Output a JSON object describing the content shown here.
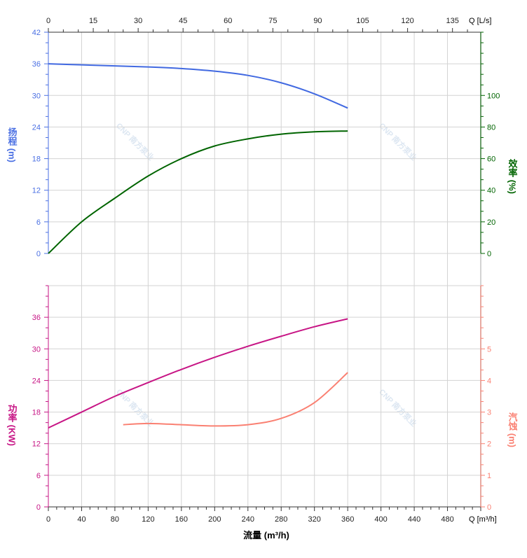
{
  "chart_data": {
    "type": "line",
    "x": {
      "label": "流量 (m³/h)",
      "unit_label": "Q [m³/h]",
      "range": [
        0,
        520
      ],
      "ticks": [
        0,
        40,
        80,
        120,
        160,
        200,
        240,
        280,
        320,
        360,
        400,
        440,
        480
      ]
    },
    "x2": {
      "unit_label": "Q [L/s]",
      "range": [
        0,
        144.44
      ],
      "ticks": [
        0,
        15,
        30,
        45,
        60,
        75,
        90,
        105,
        120,
        135
      ]
    },
    "panels": [
      {
        "name": "upper",
        "axes": [
          {
            "id": "head",
            "label": "扬程 (m)",
            "side": "left",
            "range": [
              0,
              42
            ],
            "ticks": [
              0,
              6,
              12,
              18,
              24,
              30,
              36,
              42
            ],
            "color": "#4a6fe3"
          },
          {
            "id": "eff",
            "label": "效率 (%)",
            "side": "right",
            "range": [
              0,
              140
            ],
            "ticks": [
              0,
              20,
              40,
              60,
              80,
              100
            ],
            "color": "#006400"
          }
        ],
        "series": [
          {
            "id": "head",
            "axis": "head",
            "color": "#4169e1",
            "x": [
              0,
              40,
              80,
              120,
              160,
              200,
              240,
              280,
              320,
              360
            ],
            "y": [
              36,
              35.8,
              35.6,
              35.4,
              35.1,
              34.6,
              33.8,
              32.4,
              30.3,
              27.6
            ]
          },
          {
            "id": "eff",
            "axis": "eff",
            "color": "#006400",
            "x": [
              0,
              40,
              80,
              120,
              160,
              200,
              240,
              280,
              320,
              360
            ],
            "y": [
              0,
              20,
              35,
              49,
              60,
              68,
              72.5,
              75.5,
              77,
              77.5
            ]
          }
        ]
      },
      {
        "name": "lower",
        "axes": [
          {
            "id": "power",
            "label": "功率 (KW)",
            "side": "left",
            "range": [
              0,
              42
            ],
            "ticks": [
              0,
              6,
              12,
              18,
              24,
              30,
              36
            ],
            "color": "#c71585"
          },
          {
            "id": "npsh",
            "label": "汽蚀 (m)",
            "side": "right",
            "range": [
              0,
              7
            ],
            "ticks": [
              0,
              1,
              2,
              3,
              4,
              5
            ],
            "color": "#fa8072"
          }
        ],
        "series": [
          {
            "id": "power",
            "axis": "power",
            "color": "#c71585",
            "x": [
              0,
              40,
              80,
              120,
              160,
              200,
              240,
              280,
              320,
              360
            ],
            "y": [
              15,
              18,
              21,
              23.6,
              26.1,
              28.4,
              30.5,
              32.4,
              34.2,
              35.7
            ]
          },
          {
            "id": "npsh",
            "axis": "npsh",
            "color": "#fa8072",
            "x": [
              90,
              120,
              160,
              200,
              240,
              280,
              320,
              360
            ],
            "y": [
              2.6,
              2.64,
              2.6,
              2.56,
              2.6,
              2.8,
              3.3,
              4.25
            ]
          }
        ]
      }
    ],
    "grid": true
  },
  "watermark": "CNP 南方泵业"
}
